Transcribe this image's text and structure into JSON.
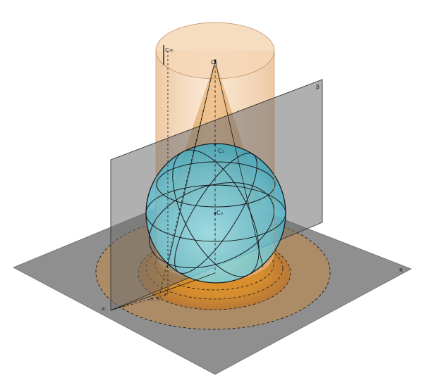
{
  "labels": {
    "c_inf": "C∞",
    "c2": "C₂",
    "c1": "C₁",
    "c_center": "C₀",
    "beta": "β",
    "pi": "π",
    "a_prime": "A'",
    "r": "R",
    "r_prime": "R'",
    "p_prime": "P'"
  },
  "colors": {
    "background": "#ffffff",
    "ground_plane": "#8c8c8c",
    "vertical_plane": "#7a7a7a",
    "cylinder": "#f2c9a0",
    "cone": "#e0a25a",
    "sphere": "#6fd3e6",
    "shadow": "#d98c28",
    "stroke": "#1a1a1a"
  }
}
